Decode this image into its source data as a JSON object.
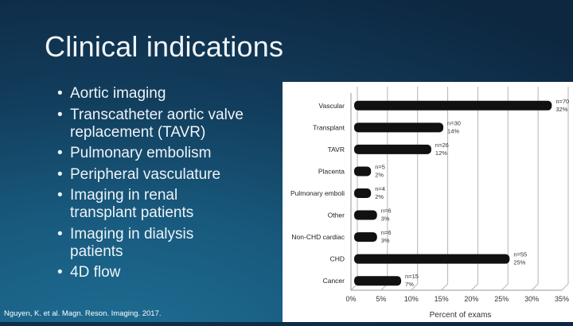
{
  "slide": {
    "title": "Clinical indications",
    "bullets": [
      "Aortic imaging",
      "Transcatheter aortic valve\nreplacement (TAVR)",
      "Pulmonary embolism",
      "Peripheral vasculature",
      "Imaging in renal\ntransplant patients",
      "Imaging in dialysis\npatients",
      "4D flow"
    ],
    "citation": "Nguyen, K. et al. Magn. Reson. Imaging. 2017."
  },
  "chart_data": {
    "type": "bar",
    "orientation": "horizontal",
    "categories": [
      "Vascular",
      "Transplant",
      "TAVR",
      "Placenta",
      "Pulmonary emboli",
      "Other",
      "Non-CHD cardiac",
      "CHD",
      "Cancer"
    ],
    "values": [
      32,
      14,
      12,
      2,
      2,
      3,
      3,
      25,
      7
    ],
    "counts": [
      "n=70",
      "n=30",
      "n=26",
      "n=5",
      "n=4",
      "n=6",
      "n=6",
      "n=55",
      "n=15"
    ],
    "value_labels": [
      "32%",
      "14%",
      "12%",
      "2%",
      "2%",
      "3%",
      "3%",
      "25%",
      "7%"
    ],
    "xlabel": "Percent of exams",
    "xlim": [
      0,
      35
    ],
    "xticks": [
      "0%",
      "5%",
      "10%",
      "15%",
      "20%",
      "25%",
      "30%",
      "35%"
    ],
    "grid": true,
    "bar_color": "#111111"
  }
}
